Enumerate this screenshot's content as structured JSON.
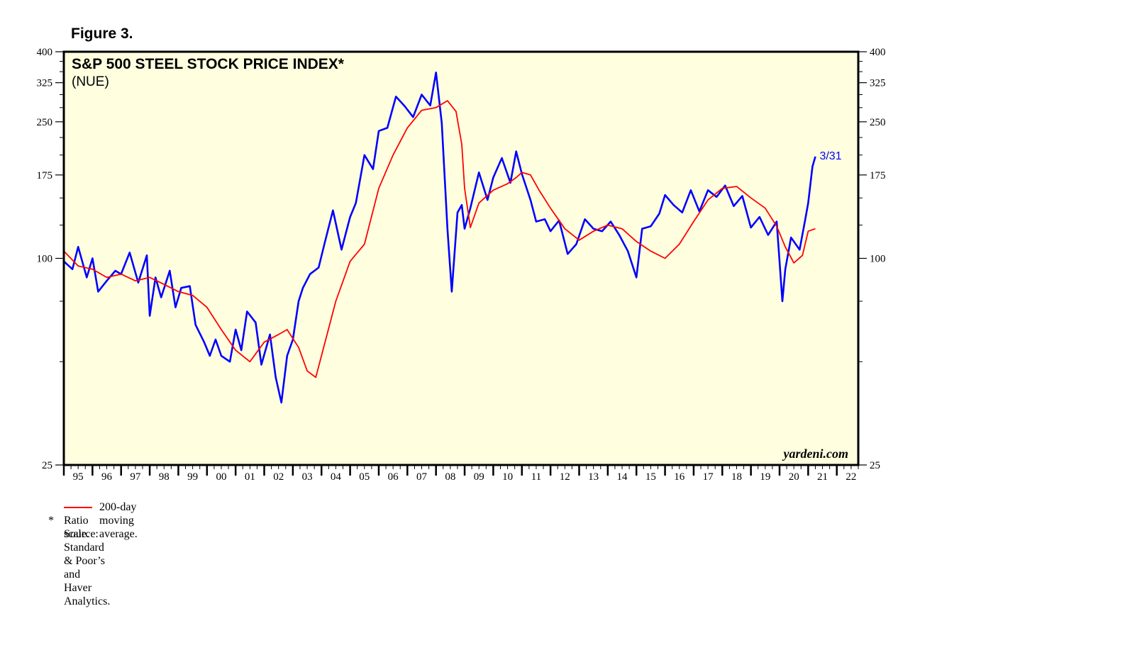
{
  "figure_label": "Figure 3.",
  "chart_data": {
    "type": "line",
    "title": "S&P 500 STEEL STOCK PRICE INDEX*",
    "subtitle": "(NUE)",
    "y_scale": "log",
    "ylim": [
      25,
      400
    ],
    "y_ticks": [
      "400",
      "325",
      "250",
      "175",
      "100",
      "25"
    ],
    "y_tick_values": [
      400,
      325,
      250,
      175,
      100,
      25
    ],
    "y_minor_ticks": [
      375,
      350,
      300,
      275,
      225,
      200,
      150,
      125,
      75,
      50
    ],
    "xlim": [
      1995.0,
      2022.75
    ],
    "x_ticks": [
      "95",
      "96",
      "97",
      "98",
      "99",
      "00",
      "01",
      "02",
      "03",
      "04",
      "05",
      "06",
      "07",
      "08",
      "09",
      "10",
      "11",
      "12",
      "13",
      "14",
      "15",
      "16",
      "17",
      "18",
      "19",
      "20",
      "21",
      "22"
    ],
    "grid": false,
    "background_color": "#ffffe0",
    "end_label": "3/31",
    "brand": "yardeni.com",
    "series": [
      {
        "color": "#0000ff",
        "x": [
          1995.0,
          1995.3,
          1995.5,
          1995.8,
          1996.0,
          1996.2,
          1996.5,
          1996.8,
          1997.0,
          1997.3,
          1997.6,
          1997.9,
          1998.0,
          1998.2,
          1998.4,
          1998.7,
          1998.9,
          1999.1,
          1999.4,
          1999.6,
          1999.9,
          2000.1,
          2000.3,
          2000.5,
          2000.8,
          2001.0,
          2001.2,
          2001.4,
          2001.7,
          2001.9,
          2002.2,
          2002.4,
          2002.6,
          2002.8,
          2003.0,
          2003.2,
          2003.35,
          2003.6,
          2003.9,
          2004.1,
          2004.4,
          2004.7,
          2005.0,
          2005.2,
          2005.5,
          2005.8,
          2006.0,
          2006.3,
          2006.6,
          2006.9,
          2007.2,
          2007.5,
          2007.8,
          2008.0,
          2008.2,
          2008.4,
          2008.55,
          2008.75,
          2008.9,
          2009.0,
          2009.2,
          2009.5,
          2009.8,
          2010.0,
          2010.3,
          2010.6,
          2010.8,
          2011.0,
          2011.3,
          2011.5,
          2011.8,
          2012.0,
          2012.3,
          2012.6,
          2012.9,
          2013.2,
          2013.5,
          2013.8,
          2014.1,
          2014.4,
          2014.7,
          2015.0,
          2015.2,
          2015.5,
          2015.8,
          2016.0,
          2016.3,
          2016.6,
          2016.9,
          2017.2,
          2017.5,
          2017.8,
          2018.1,
          2018.4,
          2018.7,
          2019.0,
          2019.3,
          2019.6,
          2019.9,
          2020.1,
          2020.2,
          2020.4,
          2020.7,
          2020.9,
          2021.0,
          2021.15,
          2021.25
        ],
        "values": [
          98,
          93,
          108,
          88,
          100,
          80,
          86,
          92,
          90,
          104,
          85,
          102,
          68,
          88,
          77,
          92,
          72,
          82,
          83,
          64,
          57,
          52,
          58,
          52,
          50,
          62,
          54,
          70,
          65,
          49,
          60,
          45,
          38,
          52,
          58,
          75,
          82,
          90,
          94,
          110,
          138,
          106,
          132,
          145,
          200,
          182,
          235,
          240,
          296,
          278,
          258,
          300,
          279,
          348,
          248,
          122,
          80,
          136,
          143,
          122,
          140,
          178,
          148,
          172,
          196,
          166,
          205,
          176,
          148,
          128,
          130,
          120,
          129,
          103,
          110,
          130,
          122,
          120,
          128,
          117,
          105,
          88,
          122,
          124,
          135,
          153,
          143,
          136,
          158,
          137,
          158,
          151,
          163,
          142,
          152,
          123,
          132,
          117,
          128,
          75,
          93,
          115,
          106,
          130,
          145,
          185,
          198
        ]
      },
      {
        "name": "200-day moving average.",
        "color": "#ff0000",
        "x": [
          1995.0,
          1995.5,
          1996.0,
          1996.5,
          1997.0,
          1997.5,
          1998.0,
          1998.5,
          1999.0,
          1999.5,
          2000.0,
          2000.5,
          2001.0,
          2001.5,
          2002.0,
          2002.5,
          2002.8,
          2003.2,
          2003.5,
          2003.8,
          2004.0,
          2004.5,
          2005.0,
          2005.5,
          2006.0,
          2006.5,
          2007.0,
          2007.5,
          2008.0,
          2008.4,
          2008.7,
          2008.9,
          2009.0,
          2009.2,
          2009.5,
          2010.0,
          2010.5,
          2010.8,
          2011.0,
          2011.3,
          2011.6,
          2012.0,
          2012.5,
          2013.0,
          2013.5,
          2014.0,
          2014.5,
          2015.0,
          2015.5,
          2016.0,
          2016.5,
          2017.0,
          2017.5,
          2018.0,
          2018.5,
          2019.0,
          2019.5,
          2019.9,
          2020.2,
          2020.5,
          2020.8,
          2021.0,
          2021.25
        ],
        "values": [
          105,
          95,
          93,
          88,
          90,
          86,
          88,
          84,
          80,
          78,
          72,
          62,
          54,
          50,
          57,
          60,
          62,
          55,
          47,
          45,
          52,
          75,
          98,
          110,
          160,
          200,
          240,
          270,
          275,
          288,
          268,
          215,
          160,
          123,
          145,
          158,
          165,
          172,
          178,
          175,
          158,
          140,
          122,
          113,
          120,
          125,
          122,
          112,
          105,
          100,
          110,
          128,
          148,
          160,
          162,
          150,
          140,
          124,
          108,
          97,
          102,
          120,
          122
        ]
      }
    ],
    "legend": "bottom-left"
  },
  "notes": {
    "star": "*",
    "ratio": "Ratio scale.",
    "source": "Source: Standard & Poor’s and Haver Analytics."
  }
}
